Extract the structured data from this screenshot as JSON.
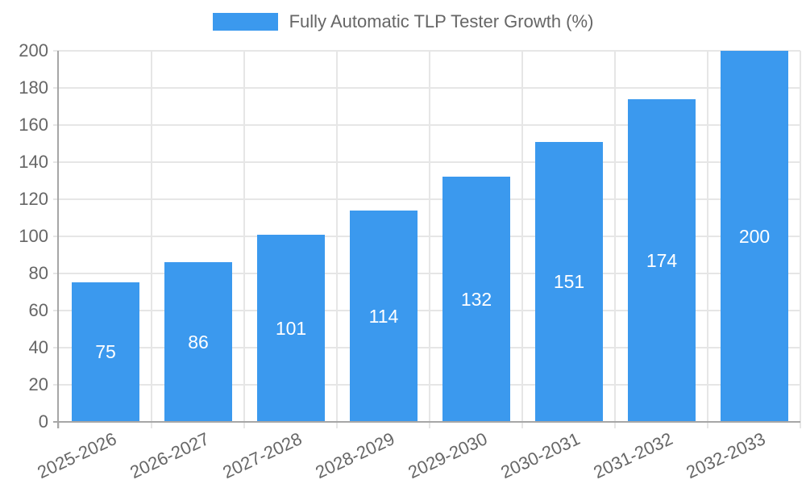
{
  "chart_data": {
    "type": "bar",
    "title": "Fully Automatic TLP Tester Growth (%)",
    "categories": [
      "2025-2026",
      "2026-2027",
      "2027-2028",
      "2028-2029",
      "2029-2030",
      "2030-2031",
      "2031-2032",
      "2032-2033"
    ],
    "values": [
      75,
      86,
      101,
      114,
      132,
      151,
      174,
      200
    ],
    "y_ticks": [
      0,
      20,
      40,
      60,
      80,
      100,
      120,
      140,
      160,
      180,
      200
    ],
    "ylim": [
      0,
      200
    ],
    "xlabel": "",
    "ylabel": "",
    "grid": true,
    "legend_position": "top",
    "x_label_rotation_deg": -25
  },
  "colors": {
    "bar": "#3b99ee",
    "value_label": "#ffffff",
    "tick_text": "#666666",
    "grid": "#e6e6e6",
    "axis": "#a6a6a6"
  }
}
